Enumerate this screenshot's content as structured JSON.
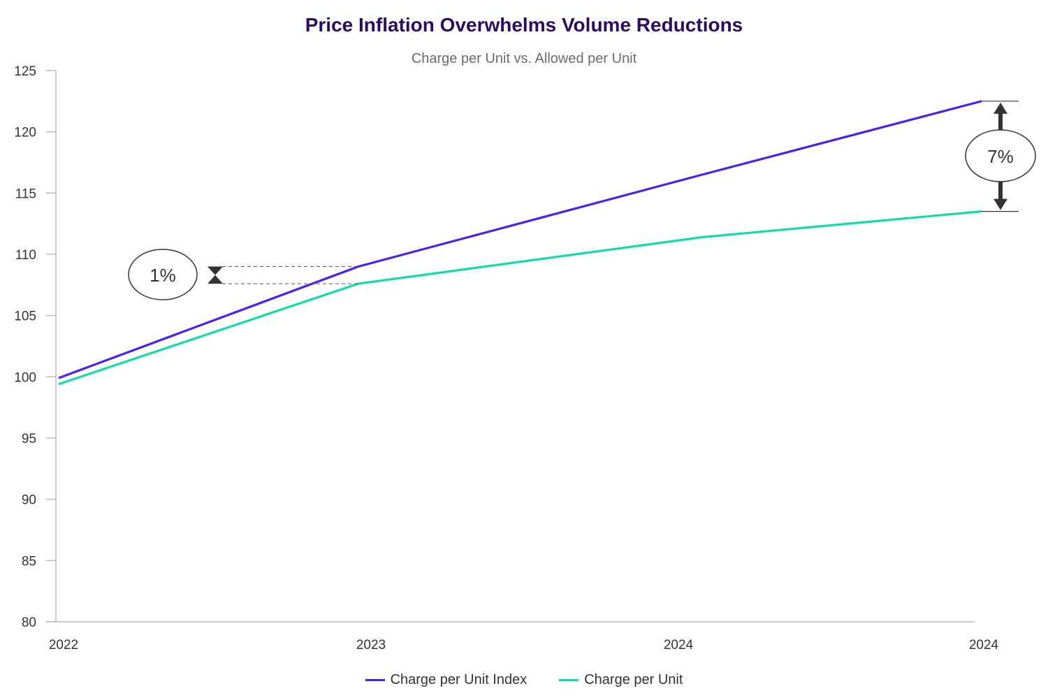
{
  "colors": {
    "index": "#4a22e8",
    "charge": "#12dba8",
    "axis": "#bbbbbb",
    "annotation": "#333333"
  },
  "chart_data": {
    "type": "line",
    "title": "Price Inflation Overwhelms Volume Reductions",
    "subtitle": "Charge per Unit vs. Allowed per Unit",
    "categories": [
      "2022",
      "2023",
      "2024",
      "2024"
    ],
    "series": [
      {
        "name": "Charge per Unit Index",
        "values": [
          99.9,
          109.0,
          116.5,
          122.5
        ]
      },
      {
        "name": "Charge per Unit",
        "values": [
          99.4,
          107.6,
          111.4,
          113.5
        ]
      }
    ],
    "ylim": [
      80,
      125
    ],
    "yticks": [
      "125",
      "120",
      "115",
      "110",
      "105",
      "100",
      "95",
      "90",
      "85",
      "80"
    ],
    "annotations": [
      {
        "label": "1%",
        "category_index": 1
      },
      {
        "label": "7%",
        "category_index": 3
      }
    ],
    "legend_position": "bottom",
    "grid": false
  }
}
